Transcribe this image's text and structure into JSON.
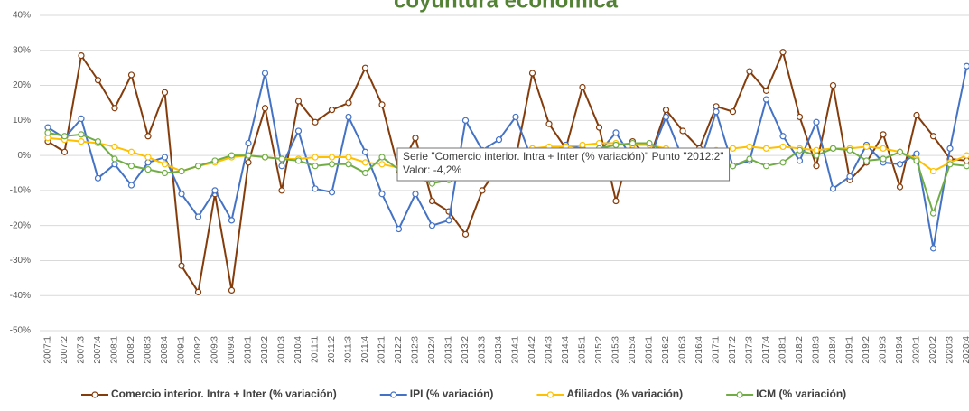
{
  "chart_data": {
    "type": "line",
    "title": "coyuntura económica",
    "categories": [
      "2007:1",
      "2007:2",
      "2007:3",
      "2007:4",
      "2008:1",
      "2008:2",
      "2008:3",
      "2008:4",
      "2009:1",
      "2009:2",
      "2009:3",
      "2009:4",
      "2010:1",
      "2010:2",
      "2010:3",
      "2010:4",
      "2011:1",
      "2011:2",
      "2011:3",
      "2011:4",
      "2012:1",
      "2012:2",
      "2012:3",
      "2012:4",
      "2013:1",
      "2013:2",
      "2013:3",
      "2013:4",
      "2014:1",
      "2014:2",
      "2014:3",
      "2014:4",
      "2015:1",
      "2015:2",
      "2015:3",
      "2015:4",
      "2016:1",
      "2016:2",
      "2016:3",
      "2016:4",
      "2017:1",
      "2017:2",
      "2017:3",
      "2017:4",
      "2018:1",
      "2018:2",
      "2018:3",
      "2018:4",
      "2019:1",
      "2019:2",
      "2019:3",
      "2019:4",
      "2020:1",
      "2020:2",
      "2020:3",
      "2020:4"
    ],
    "series": [
      {
        "name": "Comercio interior. Intra + Inter (% variación)",
        "color": "#843c0c",
        "values": [
          4,
          1,
          28.5,
          21.5,
          13.5,
          23,
          5.5,
          18,
          -31.5,
          -39,
          -11,
          -38.5,
          -2,
          13.5,
          -10,
          15.5,
          9.5,
          13,
          15,
          25,
          14.5,
          -4.2,
          5,
          -13,
          -16,
          -22.5,
          -10,
          -3,
          -1,
          23.5,
          9,
          2,
          19.5,
          8,
          -13,
          4,
          -1,
          13,
          7,
          2,
          14,
          12.5,
          24,
          18.5,
          29.5,
          11,
          -3,
          20,
          -7,
          -2,
          6,
          -9,
          11.5,
          5.5,
          -1,
          -1.5
        ]
      },
      {
        "name": "IPI (% variación)",
        "color": "#4472c4",
        "values": [
          8,
          5,
          10.5,
          -6.5,
          -2.5,
          -8.5,
          -2,
          -0.5,
          -11,
          -17.5,
          -10,
          -18.5,
          3.5,
          23.5,
          -3,
          7,
          -9.5,
          -10.5,
          11,
          1,
          -11,
          -21,
          -11,
          -20,
          -18.5,
          10,
          1.5,
          4.5,
          11,
          -1.5,
          0.5,
          3,
          2,
          1,
          6.5,
          -1,
          -1,
          11,
          -1,
          -2.5,
          12.5,
          -3,
          -1.5,
          16,
          5.5,
          -1.5,
          9.5,
          -9.5,
          -6,
          3,
          -2,
          -2.5,
          0.5,
          -26.5,
          2,
          25.5
        ]
      },
      {
        "name": "Afiliados (% variación)",
        "color": "#ffc000",
        "values": [
          5,
          4.5,
          4,
          3.5,
          2.5,
          1,
          -0.5,
          -2.5,
          -4.5,
          -3,
          -2,
          -0.5,
          0,
          -0.5,
          -1,
          -1,
          -0.5,
          -0.5,
          -0.5,
          -2,
          -2.5,
          -3.5,
          -4,
          -4.5,
          -4.5,
          -4,
          -3,
          -1,
          0,
          2,
          2.5,
          2.5,
          3,
          3.5,
          3.5,
          3,
          3,
          2,
          1,
          0.5,
          1.5,
          2,
          2.5,
          2,
          2.5,
          2,
          1.5,
          2,
          2,
          2.5,
          2,
          1,
          -1,
          -4.5,
          -2,
          0
        ]
      },
      {
        "name": "ICM (% variación)",
        "color": "#70ad47",
        "values": [
          6.5,
          5.5,
          6,
          4,
          -1,
          -3,
          -4,
          -5,
          -4.5,
          -3,
          -1.5,
          0,
          0,
          -0.5,
          -1,
          -1.5,
          -3,
          -2.5,
          -2.5,
          -5,
          -0.5,
          -4,
          -6,
          -8,
          -7,
          -6,
          -3,
          -2,
          -1,
          0,
          1,
          1,
          1.5,
          2,
          3,
          3.5,
          3.5,
          1,
          1,
          0.5,
          -2,
          -3,
          -1,
          -3,
          -2,
          1.5,
          0,
          2,
          1.5,
          -1.5,
          -1,
          1,
          -1.5,
          -16.5,
          -2.5,
          -3
        ]
      }
    ],
    "ylim": [
      -50,
      40
    ],
    "yticks": [
      {
        "value": -50,
        "label": "-50%"
      },
      {
        "value": -40,
        "label": "-40%"
      },
      {
        "value": -30,
        "label": "-30%"
      },
      {
        "value": -20,
        "label": "-20%"
      },
      {
        "value": -10,
        "label": "-10%"
      },
      {
        "value": 0,
        "label": "0%"
      },
      {
        "value": 10,
        "label": "10%"
      },
      {
        "value": 20,
        "label": "20%"
      },
      {
        "value": 30,
        "label": "30%"
      },
      {
        "value": 40,
        "label": "40%"
      }
    ],
    "grid": true,
    "legend": "bottom",
    "tooltip": [
      "Serie \"Comercio interior. Intra + Inter (% variación)\" Punto \"2012:2\"",
      "Valor: -4,2%"
    ]
  }
}
